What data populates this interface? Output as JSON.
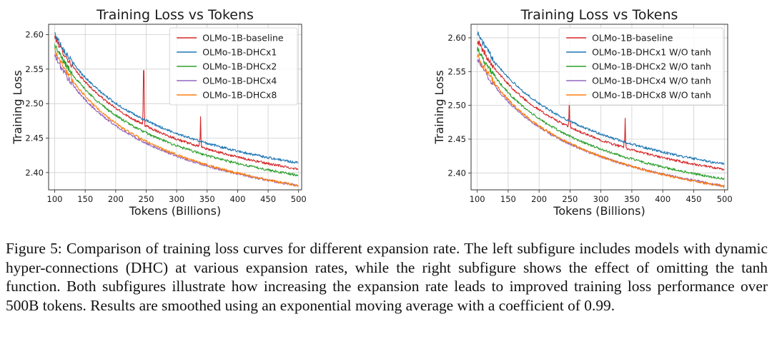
{
  "chart_data": [
    {
      "type": "line",
      "panel": "left",
      "title": "Training Loss vs Tokens",
      "xlabel": "Tokens (Billions)",
      "ylabel": "Training Loss",
      "xlim": [
        90,
        505
      ],
      "ylim": [
        2.375,
        2.615
      ],
      "xticks": [
        100,
        150,
        200,
        250,
        300,
        350,
        400,
        450,
        500
      ],
      "yticks": [
        2.4,
        2.45,
        2.5,
        2.55,
        2.6
      ],
      "grid": true,
      "legend_position": "top-right",
      "series": [
        {
          "name": "OLMo-1B-baseline",
          "color": "#d62728",
          "start": 2.597,
          "end": 2.405,
          "spikes": [
            {
              "x": 246,
              "y": 2.548
            },
            {
              "x": 339,
              "y": 2.481
            }
          ]
        },
        {
          "name": "OLMo-1B-DHCx1",
          "color": "#1f77b4",
          "start": 2.602,
          "end": 2.414,
          "spikes": []
        },
        {
          "name": "OLMo-1B-DHCx2",
          "color": "#2ca02c",
          "start": 2.585,
          "end": 2.396,
          "spikes": []
        },
        {
          "name": "OLMo-1B-DHCx4",
          "color": "#9467bd",
          "start": 2.57,
          "end": 2.381,
          "spikes": []
        },
        {
          "name": "OLMo-1B-DHCx8",
          "color": "#ff7f0e",
          "start": 2.578,
          "end": 2.381,
          "spikes": []
        }
      ]
    },
    {
      "type": "line",
      "panel": "right",
      "title": "Training Loss vs Tokens",
      "xlabel": "Tokens (Billions)",
      "ylabel": "Training Loss",
      "xlim": [
        90,
        505
      ],
      "ylim": [
        2.375,
        2.62
      ],
      "xticks": [
        100,
        150,
        200,
        250,
        300,
        350,
        400,
        450,
        500
      ],
      "yticks": [
        2.4,
        2.45,
        2.5,
        2.55,
        2.6
      ],
      "grid": true,
      "legend_position": "top-right",
      "series": [
        {
          "name": "OLMo-1B-baseline",
          "color": "#d62728",
          "start": 2.597,
          "end": 2.405,
          "spikes": [
            {
              "x": 249,
              "y": 2.505
            },
            {
              "x": 339,
              "y": 2.481
            }
          ]
        },
        {
          "name": "OLMo-1B-DHCx1  W/O tanh",
          "color": "#1f77b4",
          "start": 2.608,
          "end": 2.413,
          "spikes": []
        },
        {
          "name": "OLMo-1B-DHCx2  W/O tanh",
          "color": "#2ca02c",
          "start": 2.585,
          "end": 2.391,
          "spikes": []
        },
        {
          "name": "OLMo-1B-DHCx4  W/O tanh",
          "color": "#9467bd",
          "start": 2.57,
          "end": 2.381,
          "spikes": []
        },
        {
          "name": "OLMo-1B-DHCx8  W/O tanh",
          "color": "#ff7f0e",
          "start": 2.575,
          "end": 2.38,
          "spikes": []
        }
      ]
    }
  ],
  "caption": "Figure 5: Comparison of training loss curves for different expansion rate. The left subfigure includes models with dynamic hyper-connections (DHC) at various expansion rates, while the right subfigure shows the effect of omitting the tanh function. Both subfigures illustrate how increasing the expansion rate leads to improved training loss performance over 500B tokens. Results are smoothed using an exponential moving average with a coefficient of 0.99."
}
